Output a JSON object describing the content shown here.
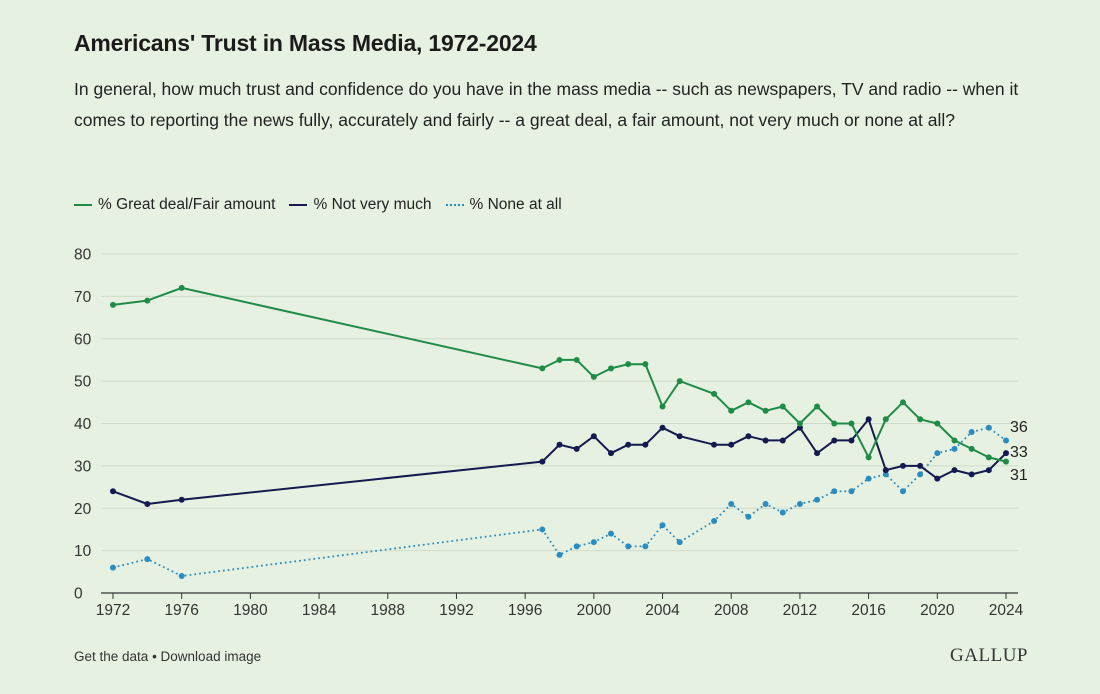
{
  "chart_data": {
    "type": "line",
    "title": "Americans' Trust in Mass Media, 1972-2024",
    "subtitle": "In general, how much trust and confidence do you have in the mass media -- such as newspapers, TV and radio -- when it comes to reporting the news fully, accurately and fairly -- a great deal, a fair amount, not very much or none at all?",
    "xlim": [
      1972,
      2024
    ],
    "ylim": [
      0,
      80
    ],
    "x_ticks": [
      "1972",
      "1976",
      "1980",
      "1984",
      "1988",
      "1992",
      "1996",
      "2000",
      "2004",
      "2008",
      "2012",
      "2016",
      "2020",
      "2024"
    ],
    "y_ticks": [
      "0",
      "10",
      "20",
      "30",
      "40",
      "50",
      "60",
      "70",
      "80"
    ],
    "grid": "horizontal",
    "legend_position": "top-left",
    "x": [
      1972,
      1974,
      1976,
      1997,
      1998,
      1999,
      2000,
      2001,
      2002,
      2003,
      2004,
      2005,
      2007,
      2008,
      2009,
      2010,
      2011,
      2012,
      2013,
      2014,
      2015,
      2016,
      2017,
      2018,
      2019,
      2020,
      2021,
      2022,
      2023,
      2024
    ],
    "series": [
      {
        "name": "% Great deal/Fair amount",
        "color": "#1e8c45",
        "style": "solid",
        "end_label": "31",
        "values": [
          68,
          69,
          72,
          53,
          55,
          55,
          51,
          53,
          54,
          54,
          44,
          50,
          47,
          43,
          45,
          43,
          44,
          40,
          44,
          40,
          40,
          32,
          41,
          45,
          41,
          40,
          36,
          34,
          32,
          31
        ]
      },
      {
        "name": "% Not very much",
        "color": "#141a4f",
        "style": "solid",
        "end_label": "33",
        "values": [
          24,
          21,
          22,
          31,
          35,
          34,
          37,
          33,
          35,
          35,
          39,
          37,
          35,
          35,
          37,
          36,
          36,
          39,
          33,
          36,
          36,
          41,
          29,
          30,
          30,
          27,
          29,
          28,
          29,
          33
        ]
      },
      {
        "name": "% None at all",
        "color": "#2b8cbf",
        "style": "dotted",
        "end_label": "36",
        "values": [
          6,
          8,
          4,
          15,
          9,
          11,
          12,
          14,
          11,
          11,
          16,
          12,
          17,
          21,
          18,
          21,
          19,
          21,
          22,
          24,
          24,
          27,
          28,
          24,
          28,
          33,
          34,
          38,
          39,
          36
        ]
      }
    ]
  },
  "footer": {
    "get_data": "Get the data",
    "separator": " • ",
    "download": "Download image"
  },
  "brand": "GALLUP"
}
